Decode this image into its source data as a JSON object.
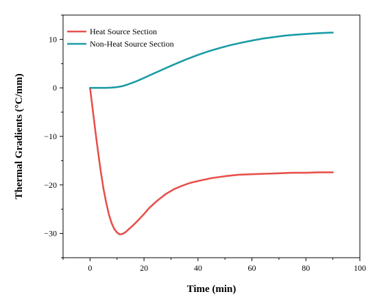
{
  "chart_data": {
    "type": "line",
    "title": "",
    "xlabel": "Time (min)",
    "ylabel": "Thermal Gradients (°C/mm)",
    "xlim": [
      -10,
      100
    ],
    "ylim": [
      -35,
      15
    ],
    "x_ticks": [
      0,
      20,
      40,
      60,
      80,
      100
    ],
    "y_ticks": [
      10,
      0,
      -10,
      -20,
      -30
    ],
    "x_tick_labels": [
      "0",
      "20",
      "40",
      "60",
      "80",
      "100"
    ],
    "y_tick_labels": [
      "10",
      "0",
      "−10",
      "−20",
      "−30"
    ],
    "grid": false,
    "legend_position": "top-left",
    "series": [
      {
        "name": "Heat Source Section",
        "color": "#e8504a",
        "x": [
          0,
          1,
          2,
          3,
          4,
          5,
          6,
          7,
          8,
          9,
          10,
          11,
          12,
          13,
          14,
          16,
          18,
          20,
          22,
          25,
          28,
          31,
          34,
          37,
          40,
          45,
          50,
          55,
          60,
          65,
          70,
          75,
          80,
          85,
          90
        ],
        "y": [
          0,
          -4.5,
          -9,
          -13.3,
          -17.3,
          -20.8,
          -23.7,
          -26.1,
          -27.9,
          -29.1,
          -29.8,
          -30.2,
          -30.1,
          -29.8,
          -29.3,
          -28.3,
          -27.2,
          -26,
          -24.7,
          -23.2,
          -21.9,
          -20.9,
          -20.2,
          -19.6,
          -19.2,
          -18.6,
          -18.2,
          -17.9,
          -17.8,
          -17.7,
          -17.6,
          -17.5,
          -17.5,
          -17.4,
          -17.4
        ]
      },
      {
        "name": "Non-Heat Source Section",
        "color": "#1a9ba6",
        "x": [
          0,
          2,
          4,
          6,
          8,
          10,
          12,
          14,
          16,
          18,
          20,
          22,
          24,
          26,
          28,
          30,
          33,
          36,
          40,
          44,
          48,
          52,
          56,
          60,
          64,
          68,
          72,
          76,
          80,
          84,
          88,
          90
        ],
        "y": [
          0,
          0,
          0,
          0,
          0.05,
          0.15,
          0.35,
          0.7,
          1.1,
          1.55,
          2.05,
          2.55,
          3.05,
          3.55,
          4.05,
          4.55,
          5.25,
          5.95,
          6.8,
          7.55,
          8.2,
          8.8,
          9.3,
          9.75,
          10.15,
          10.45,
          10.75,
          10.95,
          11.1,
          11.25,
          11.35,
          11.4
        ]
      }
    ]
  }
}
